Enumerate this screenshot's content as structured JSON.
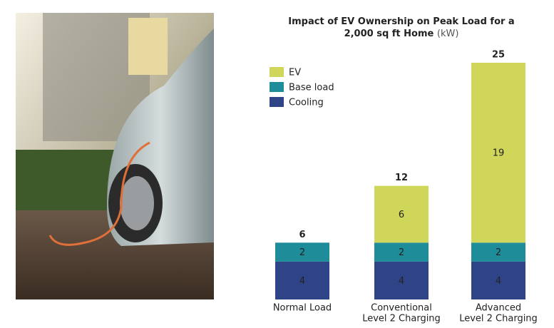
{
  "chart_data": {
    "type": "stacked_bar",
    "title": [
      "Impact of EV Ownership on Peak Load for a",
      "2,000 sq ft Home"
    ],
    "unit": "(kW)",
    "categories": [
      [
        "Normal Load"
      ],
      [
        "Conventional",
        "Level 2 Charging"
      ],
      [
        "Advanced",
        "Level 2 Charging"
      ]
    ],
    "series": [
      {
        "name": "Cooling",
        "color": "#2e4487",
        "values": [
          4,
          4,
          4
        ]
      },
      {
        "name": "Base load",
        "color": "#1e8c99",
        "values": [
          2,
          2,
          2
        ]
      },
      {
        "name": "EV",
        "color": "#cfd65a",
        "values": [
          null,
          6,
          19
        ]
      }
    ],
    "totals": [
      6,
      12,
      25
    ],
    "ylim": [
      0,
      25
    ]
  }
}
